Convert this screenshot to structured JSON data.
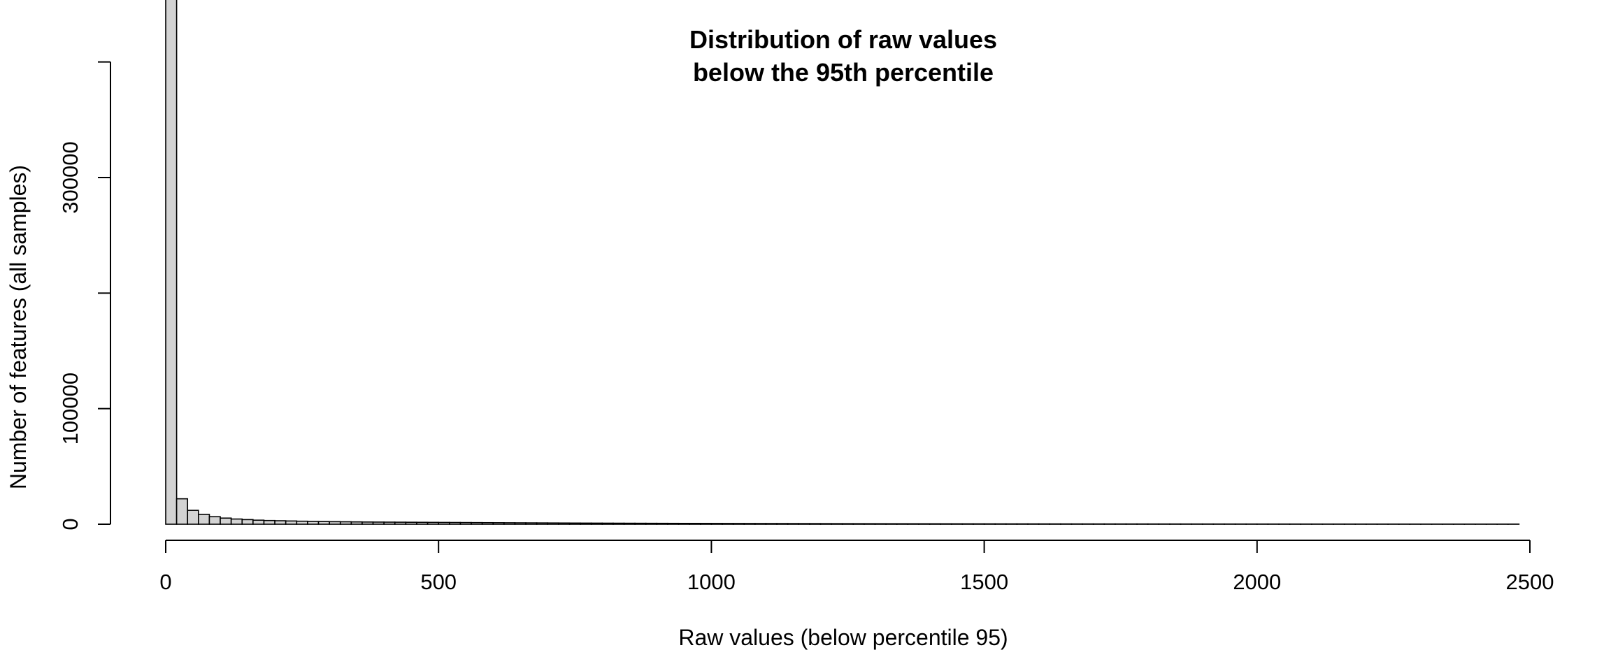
{
  "chart_data": {
    "type": "bar",
    "title": "Distribution of raw values",
    "subtitle": "below the 95th percentile",
    "xlabel": "Raw values (below percentile 95)",
    "ylabel": "Number of features (all samples)",
    "x_ticks": [
      0,
      500,
      1000,
      1500,
      2000,
      2500
    ],
    "x_tick_labels": [
      "0",
      "500",
      "1000",
      "1500",
      "2000",
      "2500"
    ],
    "y_ticks": [
      0,
      100000,
      200000,
      300000,
      400000
    ],
    "y_tick_labels": [
      "0",
      "100000",
      "",
      "300000",
      ""
    ],
    "xlim": [
      0,
      2500
    ],
    "ylim": [
      0,
      460000
    ],
    "grid": false,
    "legend": "none",
    "bar_fill": "#d3d3d3",
    "bar_stroke": "#000000",
    "bin_width": 20,
    "bin_range": [
      0,
      2480
    ],
    "values": [
      458000,
      22000,
      12000,
      8500,
      6500,
      5300,
      4500,
      4000,
      3500,
      3200,
      3000,
      2800,
      2600,
      2400,
      2300,
      2200,
      2100,
      2000,
      1900,
      1850,
      1800,
      1750,
      1700,
      1650,
      1600,
      1550,
      1500,
      1450,
      1400,
      1350,
      1300,
      1250,
      1200,
      1160,
      1120,
      1080,
      1040,
      1000,
      970,
      940,
      910,
      880,
      850,
      825,
      800,
      775,
      750,
      730,
      710,
      690,
      670,
      650,
      630,
      610,
      595,
      580,
      565,
      550,
      535,
      520,
      505,
      490,
      478,
      466,
      454,
      442,
      430,
      418,
      407,
      396,
      385,
      375,
      365,
      355,
      345,
      336,
      327,
      318,
      310,
      302,
      294,
      286,
      279,
      272,
      265,
      258,
      252,
      246,
      240,
      234,
      228,
      222,
      217,
      212,
      207,
      202,
      197,
      192,
      188,
      184,
      180,
      176,
      172,
      168,
      164,
      160,
      157,
      154,
      151,
      148,
      145,
      142,
      139,
      136,
      133,
      130,
      128,
      126,
      124,
      122,
      120,
      118,
      116,
      114
    ]
  }
}
